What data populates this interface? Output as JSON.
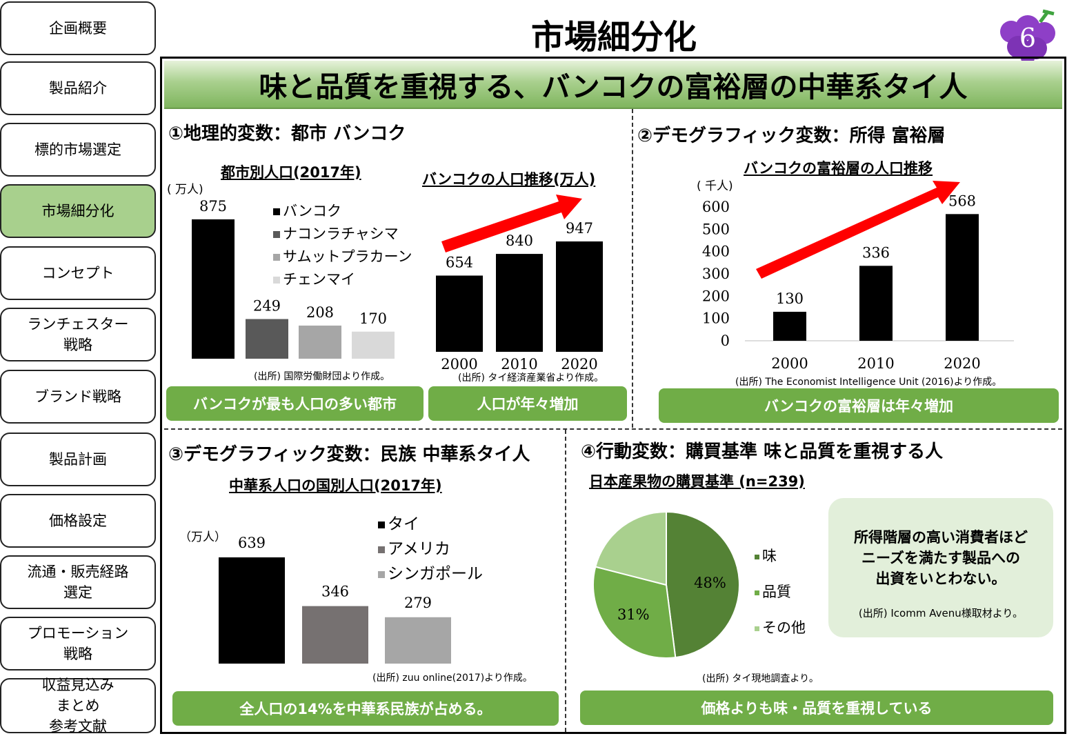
{
  "nav": [
    {
      "label": "企画概要"
    },
    {
      "label": "製品紹介"
    },
    {
      "label": "標的市場選定"
    },
    {
      "label": "市場細分化"
    },
    {
      "label": "コンセプト"
    },
    {
      "label": "ランチェスター\n戦略"
    },
    {
      "label": "ブランド戦略"
    },
    {
      "label": "製品計画"
    },
    {
      "label": "価格設定"
    },
    {
      "label": "流通・販売経路\n選定"
    },
    {
      "label": "プロモーション\n戦略"
    },
    {
      "label": "収益見込み\nまとめ\n参考文献"
    }
  ],
  "page": {
    "title": "市場細分化",
    "page_number": "6",
    "banner": "味と品質を重視する、バンコクの富裕層の中華系タイ人"
  },
  "sections": {
    "s1": "①地理的変数：都市 バンコク",
    "s2": "②デモグラフィック変数：所得 富裕層",
    "s3": "③デモグラフィック変数：民族 中華系タイ人",
    "s4": "④行動変数：購買基準 味と品質を重視する人"
  },
  "units": {
    "man": "( 万人)",
    "sen": "( 千人)",
    "man3": "（万人）"
  },
  "sources": {
    "c1": "(出所) 国際労働財団より作成。",
    "c2": "(出所) タイ経済産業省より作成。",
    "c3": "(出所) The Economist Intelligence Unit (2016)より作成。",
    "c4": "(出所) zuu online(2017)より作成。",
    "c5": "(出所) タイ現地調査より。"
  },
  "conclusions": {
    "c1": "バンコクが最も人口の多い都市",
    "c2": "人口が年々増加",
    "c3": "バンコクの富裕層は年々増加",
    "c4": "全人口の14%を中華系民族が占める。",
    "c5": "価格よりも味・品質を重視している"
  },
  "callout": {
    "text": "所得階層の高い消費者ほど\nニーズを満たす製品への\n出資をいとわない。",
    "source": "(出所) Icomm Avenu様取材より。"
  },
  "colors": {
    "accent_green": "#70ad47",
    "nav_active": "#a8d08d",
    "arrow": "#ff0000",
    "grape": "#8e3fc7"
  },
  "chart_data": [
    {
      "type": "bar",
      "title": "都市別人口(2017年)",
      "ylabel": "( 万人)",
      "categories": [
        "バンコク",
        "ナコンラチャシマ",
        "サムットプラカーン",
        "チェンマイ"
      ],
      "values": [
        875,
        249,
        208,
        170
      ],
      "colors": [
        "#000000",
        "#595959",
        "#a6a6a6",
        "#d9d9d9"
      ],
      "legend": "right"
    },
    {
      "type": "bar",
      "title": "バンコクの人口推移(万人)",
      "categories": [
        "2000",
        "2010",
        "2020"
      ],
      "values": [
        654,
        840,
        947
      ]
    },
    {
      "type": "bar",
      "title": "バンコクの富裕層の人口推移",
      "ylabel": "( 千人)",
      "categories": [
        "2000",
        "2010",
        "2020"
      ],
      "values": [
        130,
        336,
        568
      ],
      "ylim": [
        0,
        600
      ],
      "yticks": [
        0,
        100,
        200,
        300,
        400,
        500,
        600
      ]
    },
    {
      "type": "bar",
      "title": "中華系人口の国別人口(2017年)",
      "ylabel": "（万人）",
      "categories": [
        "タイ",
        "アメリカ",
        "シンガポール"
      ],
      "values": [
        639,
        346,
        279
      ],
      "colors": [
        "#000000",
        "#767171",
        "#a6a6a6"
      ],
      "legend": "right"
    },
    {
      "type": "pie",
      "title": "日本産果物の購買基準 (n=239)",
      "categories": [
        "味",
        "品質",
        "その他"
      ],
      "values": [
        48,
        31,
        21
      ],
      "labels": [
        "48%",
        "31%",
        ""
      ],
      "colors": [
        "#548235",
        "#70ad47",
        "#a9d08e"
      ],
      "legend": "right"
    }
  ]
}
